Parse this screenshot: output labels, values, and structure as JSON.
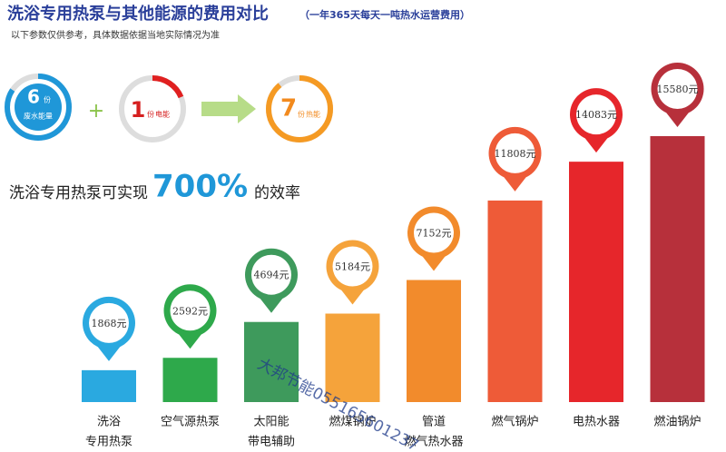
{
  "chart_data": {
    "type": "bar",
    "title": "洗浴专用热泵与其他能源的费用对比",
    "subtitle": "（一年365天每天一吨热水运营费用）",
    "note": "以下参数仅供参考，具体数据依据当地实际情况为准",
    "categories": [
      [
        "洗浴",
        "专用热泵"
      ],
      [
        "空气源热泵"
      ],
      [
        "太阳能",
        "带电辅助"
      ],
      [
        "燃煤锅炉"
      ],
      [
        "管道",
        "燃气热水器"
      ],
      [
        "燃气锅炉"
      ],
      [
        "电热水器"
      ],
      [
        "燃油锅炉"
      ]
    ],
    "values": [
      1868,
      2592,
      4694,
      5184,
      7152,
      11808,
      14083,
      15580
    ],
    "value_labels": [
      "1868元",
      "2592元",
      "4694元",
      "5184元",
      "7152元",
      "11808元",
      "14083元",
      "15580元"
    ],
    "colors": [
      "#2aa9e0",
      "#2ea94b",
      "#3e9a5c",
      "#f5a33b",
      "#f28b2c",
      "#ee5b38",
      "#e6262b",
      "#b7303b"
    ]
  },
  "diagram": {
    "input1": {
      "number": "6",
      "unit": "份",
      "label": "废水能量"
    },
    "input2": {
      "number": "1",
      "unit": "份",
      "label": "电能"
    },
    "output": {
      "number": "7",
      "unit": "份",
      "label": "热能"
    },
    "plus": "+",
    "efficiency": {
      "before": "洗浴专用热泵可实现",
      "value": "700%",
      "after": "的效率"
    }
  },
  "watermark": "大邦节能055165601237"
}
